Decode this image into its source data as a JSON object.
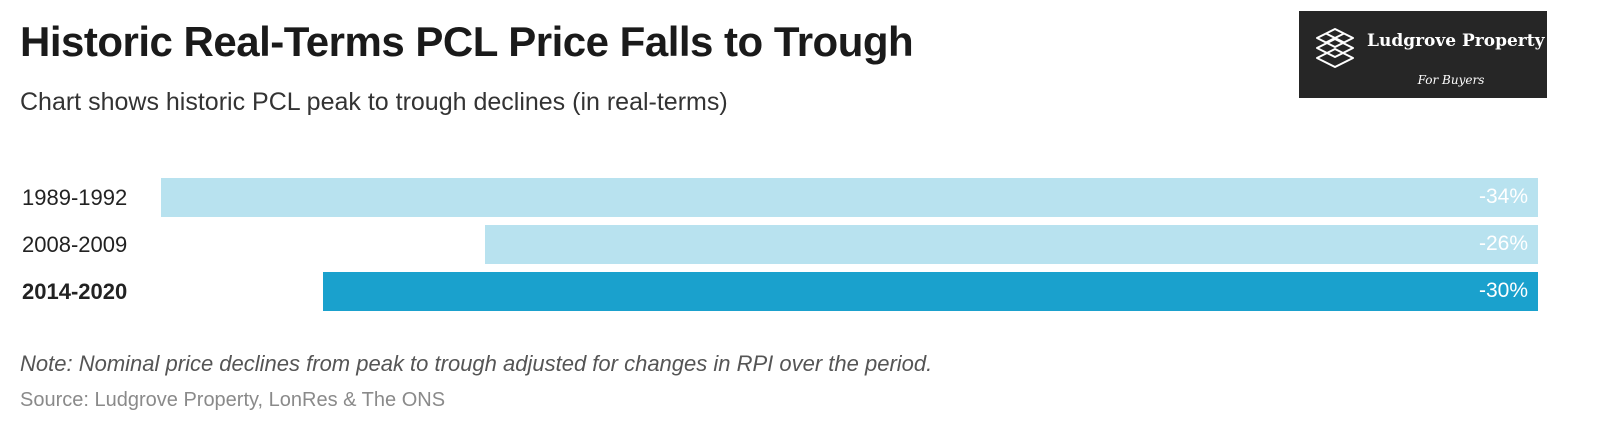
{
  "header": {
    "title": "Historic Real-Terms PCL Price Falls to Trough",
    "subtitle": "Chart shows historic PCL peak to trough declines (in real-terms)"
  },
  "logo": {
    "name": "Ludgrove Property",
    "tagline": "For Buyers",
    "icon": "isometric-stack-icon"
  },
  "chart_data": {
    "type": "bar",
    "orientation": "horizontal",
    "categories": [
      "1989-1992",
      "2008-2009",
      "2014-2020"
    ],
    "values": [
      -34,
      -26,
      -30
    ],
    "value_labels": [
      "-34%",
      "-26%",
      "-30%"
    ],
    "highlighted": [
      false,
      false,
      true
    ],
    "colors": {
      "default": "#b8e2ef",
      "highlight": "#1aa1cd",
      "value_text": "#ffffff"
    },
    "xlim": [
      -34,
      0
    ],
    "grid": false,
    "legend": "none"
  },
  "footer": {
    "note": "Note: Nominal price declines from peak to trough adjusted for changes in RPI over the period.",
    "source": "Source: Ludgrove Property, LonRes & The ONS"
  }
}
